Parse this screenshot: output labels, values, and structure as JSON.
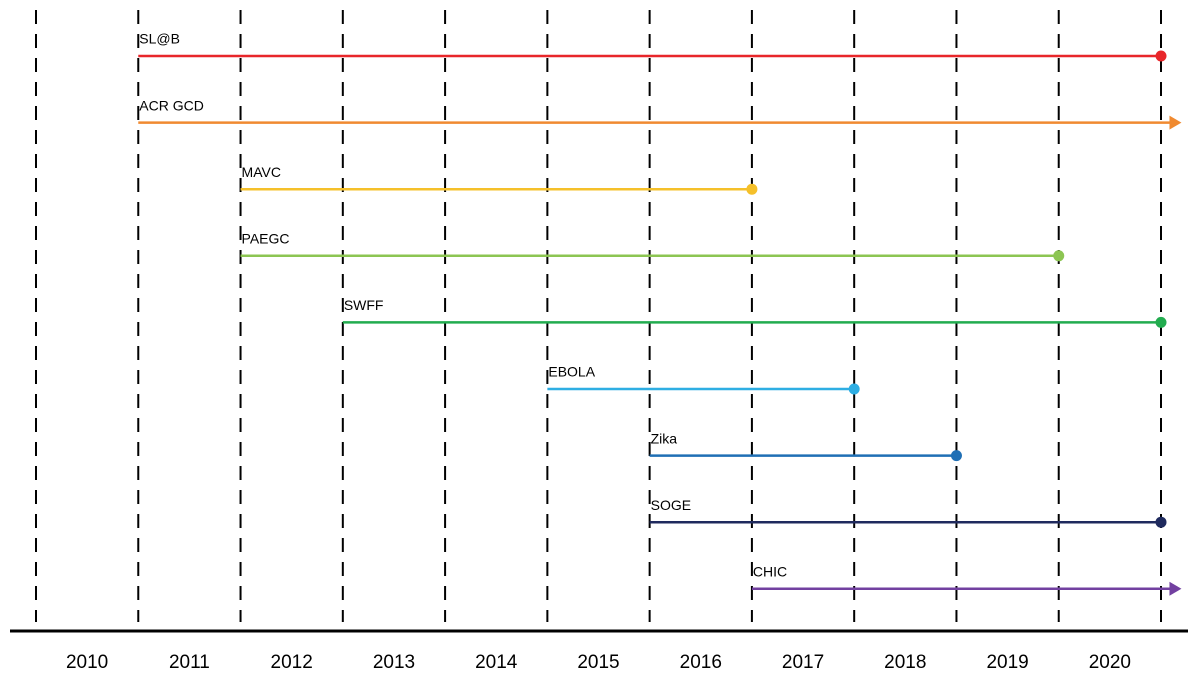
{
  "chart_data": {
    "type": "timeline",
    "categories": [
      "2010",
      "2011",
      "2012",
      "2013",
      "2014",
      "2015",
      "2016",
      "2017",
      "2018",
      "2019",
      "2020"
    ],
    "xlim": [
      2010,
      2021
    ],
    "xticks": [
      2010,
      2011,
      2012,
      2013,
      2014,
      2015,
      2016,
      2017,
      2018,
      2019,
      2020,
      2021
    ],
    "grid": true,
    "series": [
      {
        "name": "SL@B",
        "color": "#e8262a",
        "start": 2011,
        "end": 2021,
        "end_marker": "dot"
      },
      {
        "name": "ACR GCD",
        "color": "#f08a30",
        "start": 2011,
        "end": 2021.2,
        "end_marker": "arrow"
      },
      {
        "name": "MAVC",
        "color": "#f5c02a",
        "start": 2012,
        "end": 2017,
        "end_marker": "dot"
      },
      {
        "name": "PAEGC",
        "color": "#8cc552",
        "start": 2012,
        "end": 2020,
        "end_marker": "dot"
      },
      {
        "name": "SWFF",
        "color": "#22ac4f",
        "start": 2013,
        "end": 2021,
        "end_marker": "dot"
      },
      {
        "name": "EBOLA",
        "color": "#2eaee3",
        "start": 2015,
        "end": 2018,
        "end_marker": "dot"
      },
      {
        "name": "Zika",
        "color": "#1f6fb5",
        "start": 2016,
        "end": 2019,
        "end_marker": "dot"
      },
      {
        "name": "SOGE",
        "color": "#1f2a5e",
        "start": 2016,
        "end": 2021,
        "end_marker": "dot"
      },
      {
        "name": "CHIC",
        "color": "#7240a0",
        "start": 2017,
        "end": 2021.2,
        "end_marker": "arrow"
      }
    ]
  }
}
